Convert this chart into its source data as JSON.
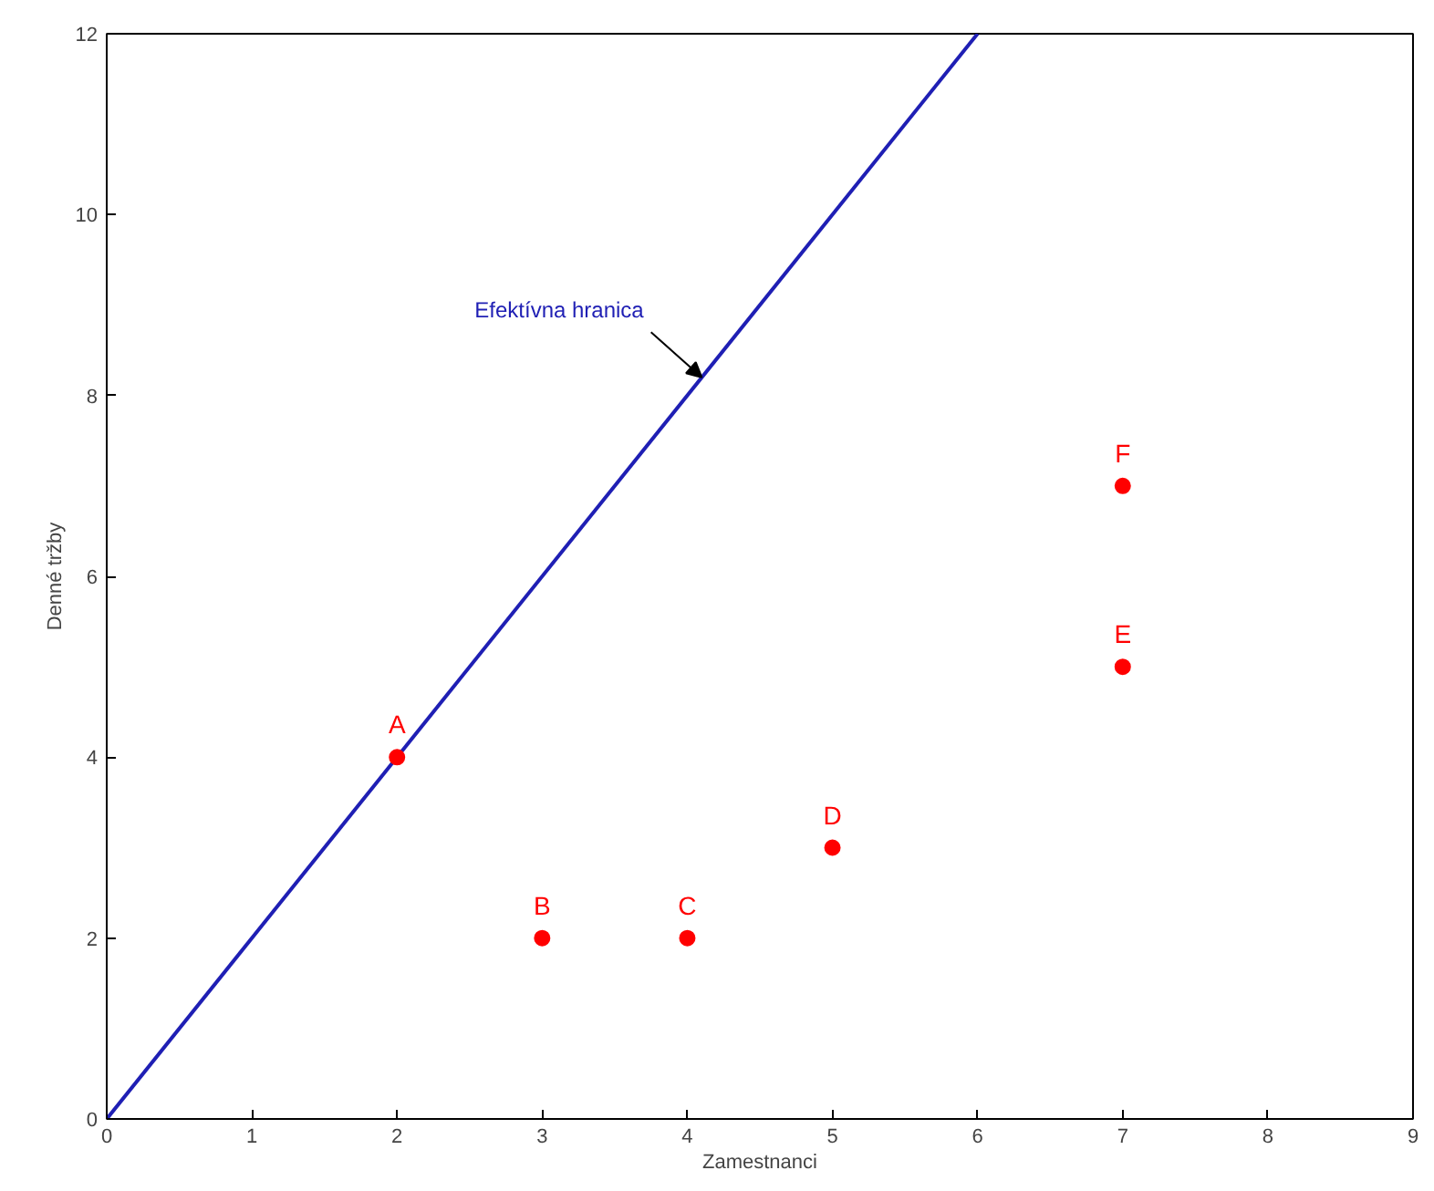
{
  "chart_data": {
    "type": "scatter",
    "xlabel": "Zamestnanci",
    "ylabel": "Denné tržby",
    "xlim": [
      0,
      9
    ],
    "ylim": [
      0,
      12
    ],
    "xticks": [
      0,
      1,
      2,
      3,
      4,
      5,
      6,
      7,
      8,
      9
    ],
    "yticks": [
      0,
      2,
      4,
      6,
      8,
      10,
      12
    ],
    "grid": false,
    "series": [
      {
        "type": "line",
        "color": "#1f1fb4",
        "x": [
          0,
          6
        ],
        "values": [
          0,
          12
        ],
        "marker": "none",
        "line_style": "solid"
      },
      {
        "color": "#ff0000",
        "x": [
          2,
          3,
          4,
          5,
          7,
          7
        ],
        "values": [
          4,
          2,
          2,
          3,
          5,
          7
        ],
        "marker": "circle"
      }
    ],
    "annotations": [
      {
        "text": "Efektívna hranica",
        "x": 4.1,
        "y": 8.2
      },
      {
        "text": "A",
        "x": 2,
        "y": 4
      },
      {
        "text": "B",
        "x": 3,
        "y": 2
      },
      {
        "text": "C",
        "x": 4,
        "y": 2
      },
      {
        "text": "D",
        "x": 5,
        "y": 3
      },
      {
        "text": "E",
        "x": 7,
        "y": 5
      },
      {
        "text": "F",
        "x": 7,
        "y": 7
      }
    ]
  }
}
